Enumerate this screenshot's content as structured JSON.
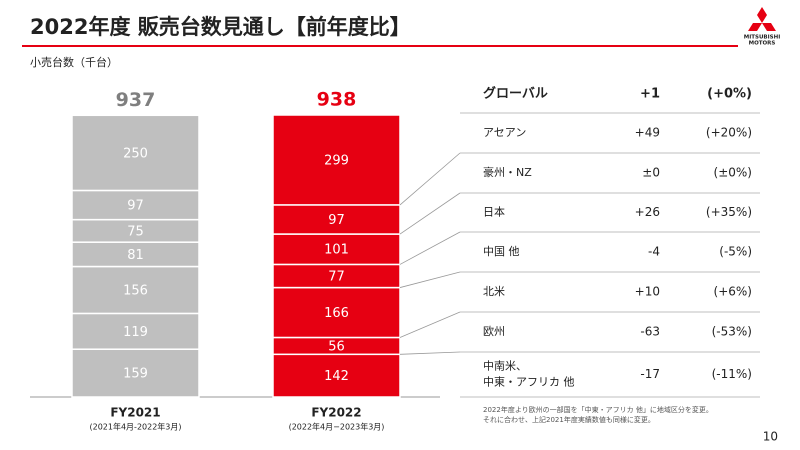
{
  "title": "2022年度 販売台数見通し【前年度比】",
  "logo": [
    "MITSUBISHI",
    "MOTORS"
  ],
  "page_number": "10",
  "chart_data": {
    "type": "stacked_bar",
    "subtitle": "小売台数（千台）",
    "categories": [
      "FY2021",
      "FY2022"
    ],
    "category_sublabels": [
      "(2021年4月-2022年3月)",
      "(2022年4月−2023年3月)"
    ],
    "colors": [
      "#bfbfbf",
      "#e60012"
    ],
    "total_colors": [
      "#7f7f7f",
      "#e60012"
    ],
    "totals": [
      937,
      938
    ],
    "series": [
      {
        "values": [
          250,
          299
        ]
      },
      {
        "values": [
          97,
          97
        ]
      },
      {
        "values": [
          75,
          101
        ]
      },
      {
        "values": [
          81,
          77
        ]
      },
      {
        "values": [
          156,
          166
        ]
      },
      {
        "values": [
          119,
          56
        ]
      },
      {
        "values": [
          159,
          142
        ]
      }
    ]
  },
  "table": {
    "header": [
      "グローバル",
      "+1",
      "(+0%)"
    ],
    "rows": [
      {
        "name": [
          "アセアン"
        ],
        "change": "+49",
        "pct": "(+20%)"
      },
      {
        "name": [
          "豪州・NZ"
        ],
        "change": "±0",
        "pct": "(±0%)"
      },
      {
        "name": [
          "日本"
        ],
        "change": "+26",
        "pct": "(+35%)"
      },
      {
        "name": [
          "中国 他"
        ],
        "change": "-4",
        "pct": "(-5%)"
      },
      {
        "name": [
          "北米"
        ],
        "change": "+10",
        "pct": "(+6%)"
      },
      {
        "name": [
          "欧州"
        ],
        "change": "-63",
        "pct": "(-53%)"
      },
      {
        "name": [
          "中南米、",
          "中東・アフリカ 他"
        ],
        "change": "-17",
        "pct": "(-11%)"
      }
    ]
  },
  "footnote": [
    "2022年度より欧州の一部国を「中東・アフリカ 他」に地域区分を変更。",
    "それに合わせ、上記2021年度実績数値も同様に変更。"
  ]
}
